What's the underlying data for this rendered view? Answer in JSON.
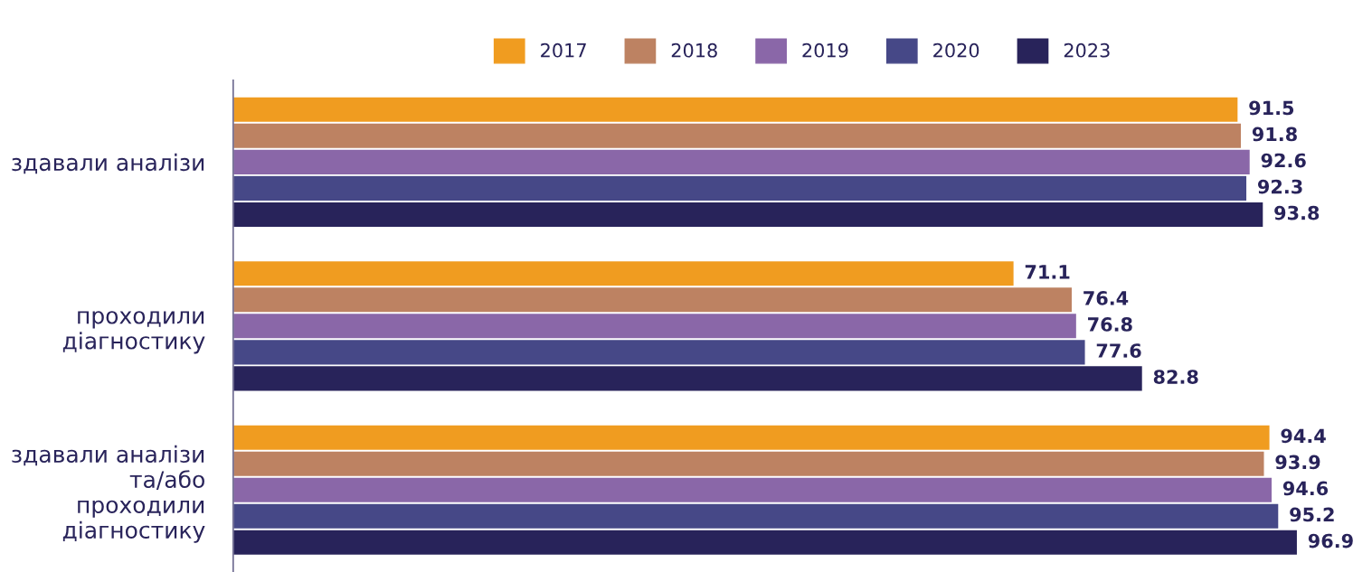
{
  "chart_data": {
    "type": "bar",
    "orientation": "horizontal",
    "categories": [
      "здавали аналізи",
      "проходили\nдіагностику",
      "здавали аналізи\nта/або\nпроходили\nдіагностику"
    ],
    "series": [
      {
        "name": "2017",
        "color": "#f09c20",
        "values": [
          91.5,
          71.1,
          94.4
        ]
      },
      {
        "name": "2018",
        "color": "#bd8262",
        "values": [
          91.8,
          76.4,
          93.9
        ]
      },
      {
        "name": "2019",
        "color": "#8a67a8",
        "values": [
          92.6,
          76.8,
          94.6
        ]
      },
      {
        "name": "2020",
        "color": "#464887",
        "values": [
          92.3,
          77.6,
          95.2
        ]
      },
      {
        "name": "2023",
        "color": "#28235a",
        "values": [
          93.8,
          82.8,
          96.9
        ]
      }
    ],
    "tick_labels": "y",
    "data_labels": true,
    "legend": "top",
    "grid": false
  }
}
